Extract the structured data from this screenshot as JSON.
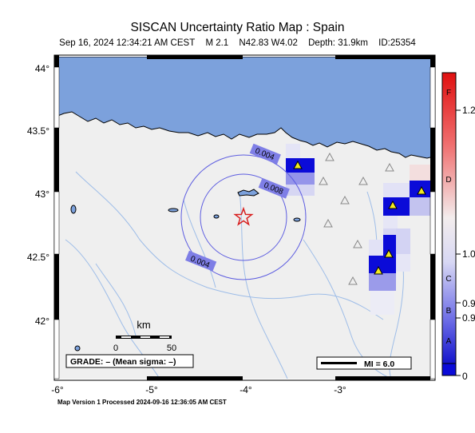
{
  "header": {
    "title": "SISCAN Uncertainty Ratio Map : Spain",
    "datetime": "Sep 16, 2024 12:34:21 AM CEST",
    "magnitude": "M 2.1",
    "coords": "N42.83 W4.02",
    "depth": "Depth: 31.9km",
    "event_id": "ID:25354"
  },
  "map": {
    "lat_labels": [
      "44°",
      "43.5°",
      "43°",
      "42.5°",
      "42°"
    ],
    "lon_labels": [
      "-6°",
      "-5°",
      "-4°",
      "-3°"
    ],
    "contours": [
      "0.004",
      "0.008",
      "0.004"
    ],
    "scale_title": "km",
    "scale_ticks": [
      "0",
      "50"
    ],
    "grade_box": "GRADE: – (Mean sigma: –)",
    "mi_label": "MI = 6.0",
    "colors": {
      "sea": "#7ca1dc",
      "land": "#efefef",
      "epicenter": "#d82020"
    }
  },
  "colorbar": {
    "letters": [
      "F",
      "D",
      "C",
      "B",
      "A"
    ],
    "values": [
      "1.2",
      "1.0",
      "0.9",
      "0.9",
      "0"
    ]
  },
  "footer": "Map Version 1 Processed 2024-09-16 12:36:05 AM CEST"
}
